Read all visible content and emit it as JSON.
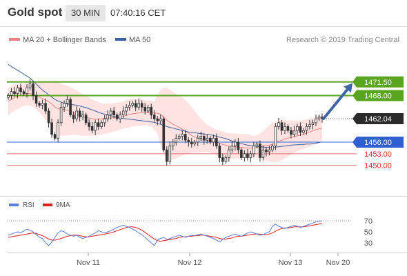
{
  "header": {
    "instrument": "Gold spot",
    "timeframe": "30 MIN",
    "time": "07:40:16 CET"
  },
  "legend": {
    "bb": "MA 20 + Bollinger Bands",
    "ma50": "MA 50",
    "rsi": "RSI",
    "ma9": "9MA"
  },
  "credit": "Research © 2019 Trading Central",
  "colors": {
    "candle": "#333333",
    "bb_fill": "#ffe3e3",
    "bb_line": "#f08080",
    "ma50": "#3d5f9e",
    "resistance": "#5aa520",
    "support_blue": "#2f5fd0",
    "support_red": "#e07070",
    "arrow": "#3d65a8",
    "rsi": "#5b7fdf",
    "rsi_ma": "#e02020"
  },
  "chart_data": [
    {
      "type": "candlestick",
      "title": "Gold spot",
      "timeframe": "30 MIN",
      "ylim": [
        1445.5,
        1477.5
      ],
      "x_ticks": [
        "Nov 11",
        "Nov 12",
        "Nov 13",
        "Nov 20"
      ],
      "price_levels": [
        {
          "label": "1471.50",
          "value": 1471.5,
          "kind": "resistance"
        },
        {
          "label": "1468.00",
          "value": 1468.0,
          "kind": "resistance"
        },
        {
          "label": "1462.04",
          "value": 1462.04,
          "kind": "last"
        },
        {
          "label": "1456.00",
          "value": 1456.0,
          "kind": "support"
        },
        {
          "label": "1453.00",
          "value": 1453.0,
          "kind": "support"
        },
        {
          "label": "1450.00",
          "value": 1450.0,
          "kind": "support"
        }
      ],
      "close": [
        1468,
        1469,
        1468.5,
        1470,
        1469,
        1468.5,
        1470,
        1471,
        1468,
        1466,
        1465.5,
        1466,
        1464,
        1461,
        1458,
        1457,
        1461,
        1465,
        1466,
        1467,
        1463,
        1462,
        1464,
        1462.5,
        1463,
        1461,
        1460,
        1459,
        1461,
        1460,
        1461,
        1462,
        1463,
        1464,
        1463,
        1462,
        1463,
        1464,
        1465,
        1465.5,
        1466,
        1465,
        1466,
        1465,
        1464,
        1465,
        1463,
        1462,
        1461.5,
        1462,
        1454,
        1451,
        1455,
        1456,
        1457,
        1457.5,
        1458,
        1456.5,
        1456,
        1455.5,
        1456,
        1457,
        1457.5,
        1456.5,
        1457,
        1456,
        1457,
        1455,
        1452,
        1451,
        1452,
        1454,
        1455,
        1456,
        1454,
        1452,
        1453,
        1452,
        1453,
        1455,
        1455.5,
        1452,
        1454,
        1453.5,
        1454,
        1455,
        1460,
        1461,
        1459,
        1460,
        1459,
        1458,
        1459,
        1460,
        1458.5,
        1459,
        1460,
        1460.5,
        1461,
        1462,
        1462.5,
        1462.04
      ],
      "ma20": [
        1466.5,
        1467,
        1467.5,
        1467.8,
        1468,
        1468.2,
        1468.5,
        1468.5,
        1468.3,
        1468,
        1467.6,
        1467.2,
        1466.8,
        1466.4,
        1465.8,
        1465.1,
        1464.6,
        1464.5,
        1464.4,
        1464.2,
        1464,
        1463.6,
        1463.3,
        1462.9,
        1462.6,
        1462.4,
        1462.2,
        1462,
        1461.9,
        1461.9,
        1462,
        1462.1,
        1462.2,
        1462.2,
        1462.3,
        1462.4,
        1462.5,
        1462.6,
        1462.9,
        1463.1,
        1463.3,
        1463.4,
        1463.5,
        1463.6,
        1463.7,
        1463.7,
        1463.6,
        1463.5,
        1463.4,
        1463.2,
        1462.5,
        1461.6,
        1461.1,
        1460.6,
        1460.2,
        1459.8,
        1459.3,
        1458.8,
        1458.3,
        1457.7,
        1457.3,
        1457,
        1456.8,
        1456.6,
        1456.4,
        1456.2,
        1456.1,
        1456,
        1455.7,
        1455.4,
        1455.2,
        1455,
        1454.9,
        1454.8,
        1454.7,
        1454.6,
        1454.5,
        1454.5,
        1454.4,
        1454.4,
        1454.6,
        1454.8,
        1455,
        1455.1,
        1455.2,
        1455.4,
        1455.8,
        1456.2,
        1456.5,
        1456.8,
        1457,
        1457.2,
        1457.4,
        1457.6,
        1457.8,
        1458,
        1458.3,
        1458.6,
        1458.9,
        1459.2,
        1459.4,
        1459.6
      ],
      "bb_upper": [
        1470,
        1470.5,
        1471,
        1471,
        1471,
        1471,
        1471.5,
        1471.5,
        1471.5,
        1471.5,
        1471.5,
        1471.5,
        1471.5,
        1471.5,
        1471.5,
        1471.5,
        1471.5,
        1471,
        1470.8,
        1470.5,
        1470.2,
        1469.8,
        1469.3,
        1468.8,
        1468.4,
        1468,
        1467.5,
        1467,
        1466.6,
        1466.3,
        1466,
        1465.9,
        1465.9,
        1466,
        1466.1,
        1466.2,
        1466.3,
        1466.5,
        1466.8,
        1467,
        1467.2,
        1467.2,
        1467.1,
        1467,
        1466.8,
        1466.8,
        1466.6,
        1466.5,
        1468,
        1469.5,
        1470,
        1470,
        1469.5,
        1469,
        1468.5,
        1468,
        1467.5,
        1466.8,
        1466,
        1465,
        1464,
        1463,
        1462,
        1461.2,
        1460.5,
        1460,
        1459.6,
        1459.2,
        1459,
        1458.8,
        1458.5,
        1458.3,
        1458.2,
        1458.2,
        1458.1,
        1458.1,
        1458,
        1458,
        1457.8,
        1457.5,
        1457.8,
        1458.2,
        1458.8,
        1459.6,
        1460.3,
        1461,
        1461.3,
        1461.5,
        1461.6,
        1461.6,
        1461.6,
        1461.6,
        1461.5,
        1461.5,
        1461.6,
        1461.7,
        1461.9,
        1462,
        1462.2,
        1462.5,
        1462.8,
        1463
      ],
      "bb_lower": [
        1463,
        1463.5,
        1464,
        1464.5,
        1465,
        1465.3,
        1465.5,
        1465.3,
        1465,
        1464.5,
        1463.6,
        1462.8,
        1461.8,
        1461,
        1460,
        1458.5,
        1457.6,
        1457.6,
        1457.6,
        1457.7,
        1457.8,
        1457.8,
        1457.8,
        1457.7,
        1457.6,
        1457.6,
        1457.6,
        1457.6,
        1457.7,
        1457.8,
        1457.9,
        1458.1,
        1458.3,
        1458.5,
        1458.7,
        1459,
        1459.2,
        1459.4,
        1459.6,
        1459.8,
        1460,
        1460.1,
        1460.2,
        1460.3,
        1460.3,
        1460.3,
        1460,
        1459.2,
        1458.2,
        1455,
        1453,
        1451.5,
        1451.2,
        1451.5,
        1451.8,
        1452.2,
        1452.6,
        1452.8,
        1453,
        1453.2,
        1453.3,
        1453.4,
        1453.4,
        1453.5,
        1453.5,
        1453.3,
        1453,
        1452.6,
        1452.2,
        1452,
        1451.8,
        1451.6,
        1451.6,
        1451.7,
        1451.8,
        1451.9,
        1452,
        1452,
        1452,
        1452.2,
        1452.1,
        1451.8,
        1451.5,
        1451.2,
        1451,
        1450.8,
        1450.8,
        1451,
        1451.3,
        1451.8,
        1452.3,
        1452.8,
        1453.2,
        1453.6,
        1454,
        1454.3,
        1454.6,
        1455,
        1455.3,
        1455.6,
        1456,
        1456.4
      ],
      "ma50": [
        1476,
        1475.5,
        1475,
        1474.5,
        1474,
        1473.5,
        1473,
        1472.5,
        1471.8,
        1471,
        1470.2,
        1469.4,
        1468.8,
        1468.2,
        1467.6,
        1467,
        1466.6,
        1466.3,
        1466,
        1465.8,
        1465.7,
        1465.6,
        1465.5,
        1465.3,
        1465.1,
        1464.9,
        1464.6,
        1464.3,
        1464,
        1463.7,
        1463.4,
        1463.2,
        1463,
        1462.8,
        1462.6,
        1462.4,
        1462.2,
        1462.1,
        1462,
        1461.9,
        1461.8,
        1461.7,
        1461.6,
        1461.5,
        1461.4,
        1461.3,
        1461.2,
        1461.1,
        1460.8,
        1460.6,
        1460.3,
        1460,
        1459.8,
        1459.6,
        1459.4,
        1459.2,
        1459,
        1458.8,
        1458.6,
        1458.5,
        1458.4,
        1458.3,
        1458.2,
        1458.1,
        1458,
        1457.9,
        1457.7,
        1457.5,
        1457.3,
        1457.1,
        1456.9,
        1456.6,
        1456.3,
        1456,
        1455.8,
        1455.6,
        1455.4,
        1455.2,
        1455.1,
        1455,
        1454.9,
        1454.8,
        1454.7,
        1454.6,
        1454.6,
        1454.6,
        1454.7,
        1454.8,
        1454.9,
        1455,
        1455.1,
        1455.2,
        1455.3,
        1455.3,
        1455.4,
        1455.4,
        1455.5,
        1455.5,
        1455.6,
        1455.7,
        1455.9,
        1456
      ]
    },
    {
      "type": "line",
      "title": "RSI",
      "ylim": [
        20,
        80
      ],
      "y_ticks": [
        70,
        50,
        30
      ],
      "overbought": 70,
      "series": [
        {
          "name": "RSI",
          "values": [
            44,
            46,
            48,
            50,
            49,
            51,
            55,
            53,
            50,
            45,
            40,
            38,
            30,
            25,
            32,
            40,
            48,
            52,
            50,
            46,
            44,
            42,
            44,
            40,
            38,
            40,
            42,
            45,
            48,
            52,
            50,
            48,
            50,
            52,
            55,
            58,
            60,
            62,
            60,
            58,
            55,
            52,
            48,
            45,
            40,
            35,
            30,
            25,
            35,
            38,
            40,
            36,
            38,
            40,
            42,
            44,
            42,
            40,
            42,
            44,
            43,
            45,
            46,
            44,
            42,
            40,
            38,
            35,
            32,
            36,
            40,
            42,
            44,
            46,
            44,
            42,
            45,
            48,
            50,
            48,
            46,
            44,
            45,
            48,
            50,
            60,
            64,
            60,
            58,
            56,
            58,
            60,
            62,
            60,
            58,
            60,
            62,
            64,
            66,
            68,
            69,
            70
          ]
        },
        {
          "name": "9MA",
          "values": [
            40,
            41,
            42,
            43,
            44,
            45,
            46,
            47,
            48,
            47,
            45,
            43,
            40,
            37,
            35,
            35,
            36,
            38,
            40,
            42,
            43,
            44,
            44,
            43,
            42,
            41,
            41,
            42,
            43,
            44,
            45,
            46,
            47,
            48,
            50,
            52,
            54,
            56,
            58,
            59,
            59,
            58,
            56,
            53,
            49,
            45,
            41,
            37,
            34,
            33,
            34,
            35,
            36,
            37,
            38,
            40,
            41,
            41,
            42,
            42,
            43,
            43,
            44,
            44,
            43,
            42,
            41,
            40,
            38,
            37,
            37,
            38,
            39,
            41,
            42,
            42,
            43,
            44,
            45,
            46,
            46,
            46,
            45,
            45,
            46,
            48,
            51,
            54,
            56,
            57,
            57,
            58,
            59,
            59,
            59,
            59,
            60,
            61,
            62,
            63,
            64,
            65
          ]
        }
      ]
    }
  ]
}
